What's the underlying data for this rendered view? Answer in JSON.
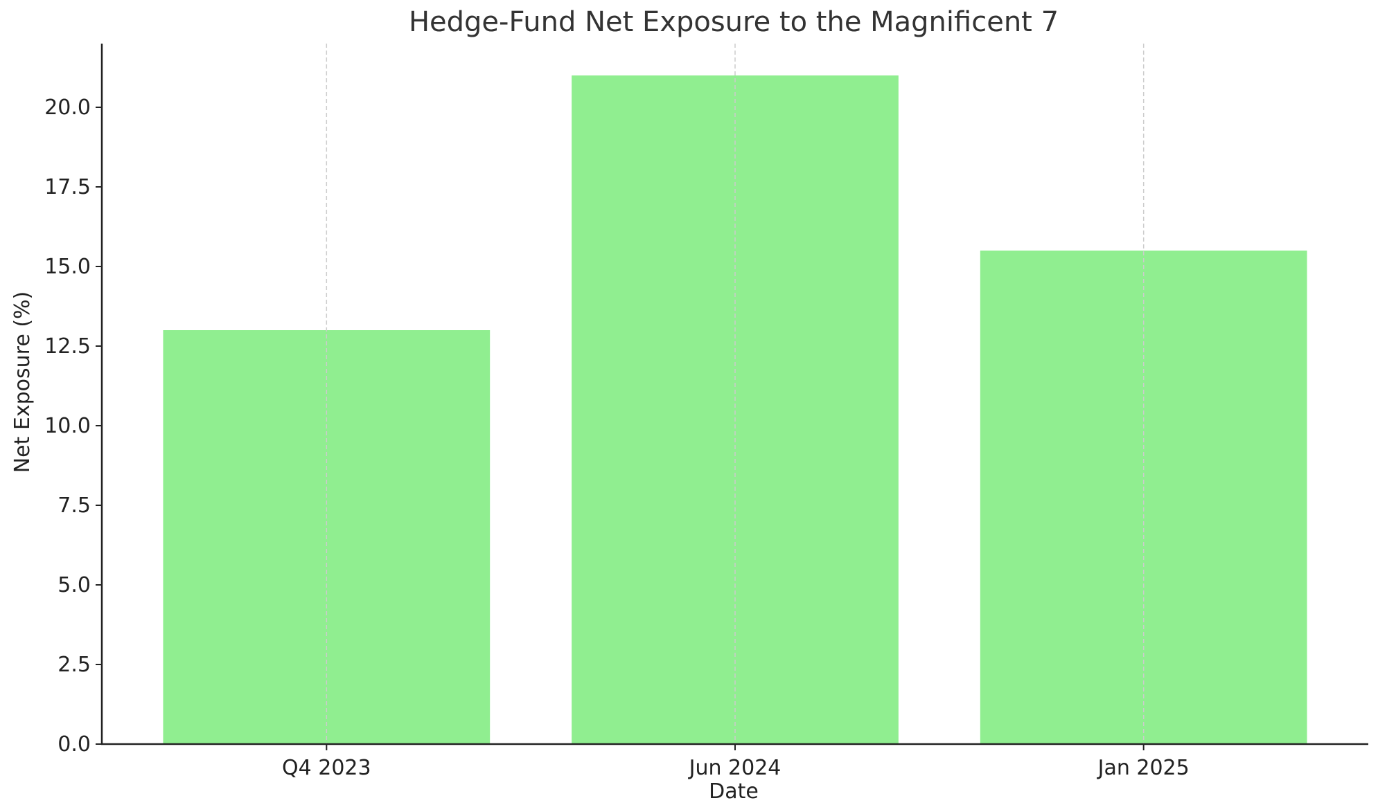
{
  "chart_data": {
    "type": "bar",
    "title": "Hedge-Fund Net Exposure to the Magnificent 7",
    "xlabel": "Date",
    "ylabel": "Net Exposure (%)",
    "categories": [
      "Q4 2023",
      "Jun 2024",
      "Jan 2025"
    ],
    "values": [
      13.0,
      21.0,
      15.5
    ],
    "ylim": [
      0,
      22
    ],
    "yticks": [
      0.0,
      2.5,
      5.0,
      7.5,
      10.0,
      12.5,
      15.0,
      17.5,
      20.0
    ],
    "ytick_labels": [
      "0.0",
      "2.5",
      "5.0",
      "7.5",
      "10.0",
      "12.5",
      "15.0",
      "17.5",
      "20.0"
    ],
    "grid": "x-axis, dashed",
    "bar_color": "#90EE90",
    "legend": "none"
  }
}
